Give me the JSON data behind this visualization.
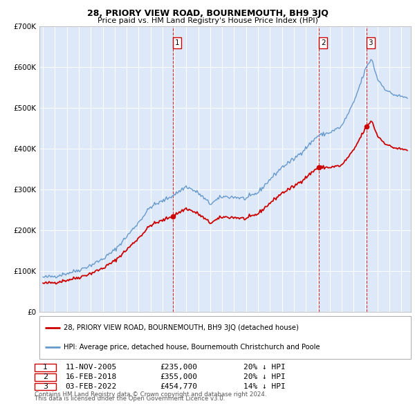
{
  "title": "28, PRIORY VIEW ROAD, BOURNEMOUTH, BH9 3JQ",
  "subtitle": "Price paid vs. HM Land Registry's House Price Index (HPI)",
  "ylim": [
    0,
    700000
  ],
  "yticks": [
    0,
    100000,
    200000,
    300000,
    400000,
    500000,
    600000,
    700000
  ],
  "ytick_labels": [
    "£0",
    "£100K",
    "£200K",
    "£300K",
    "£400K",
    "£500K",
    "£600K",
    "£700K"
  ],
  "bg_color": "#dde8f8",
  "grid_color": "#ffffff",
  "sale_dates": [
    2005.87,
    2018.12,
    2022.09
  ],
  "sale_prices": [
    235000,
    355000,
    454770
  ],
  "sale_labels": [
    "1",
    "2",
    "3"
  ],
  "legend_red": "28, PRIORY VIEW ROAD, BOURNEMOUTH, BH9 3JQ (detached house)",
  "legend_blue": "HPI: Average price, detached house, Bournemouth Christchurch and Poole",
  "footer1": "Contains HM Land Registry data © Crown copyright and database right 2024.",
  "footer2": "This data is licensed under the Open Government Licence v3.0.",
  "table_rows": [
    {
      "label": "1",
      "date": "11-NOV-2005",
      "price": "£235,000",
      "hpi": "20% ↓ HPI"
    },
    {
      "label": "2",
      "date": "16-FEB-2018",
      "price": "£355,000",
      "hpi": "20% ↓ HPI"
    },
    {
      "label": "3",
      "date": "03-FEB-2022",
      "price": "£454,770",
      "hpi": "14% ↓ HPI"
    }
  ],
  "red_color": "#cc0000",
  "blue_color": "#6699cc"
}
